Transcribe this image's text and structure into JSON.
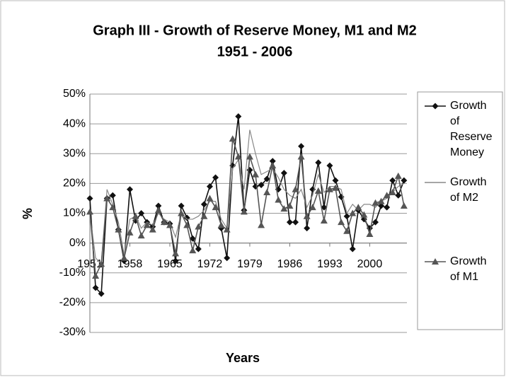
{
  "chart_data": {
    "type": "line",
    "title": "Graph III - Growth of Reserve Money, M1 and M2",
    "subtitle": "1951 - 2006",
    "y_label": "%",
    "x_label": "Years",
    "categories": [
      "1951",
      null,
      null,
      null,
      null,
      null,
      null,
      "1958",
      null,
      null,
      null,
      null,
      null,
      null,
      "1965",
      null,
      null,
      null,
      null,
      null,
      null,
      "1972",
      null,
      null,
      null,
      null,
      null,
      null,
      "1979",
      null,
      null,
      null,
      null,
      null,
      null,
      "1986",
      null,
      null,
      null,
      null,
      null,
      null,
      "1993",
      null,
      null,
      null,
      null,
      null,
      null,
      "2000",
      null,
      null,
      null,
      null,
      null,
      null
    ],
    "series": [
      {
        "name": "Growth of Reserve Money",
        "color": "#111111",
        "marker": "diamond",
        "values": [
          15,
          -15,
          -17,
          15,
          16,
          4.5,
          -6,
          18,
          7.5,
          10,
          7,
          5.5,
          12.5,
          7,
          6.5,
          -6,
          12.5,
          8.5,
          1.5,
          -2,
          13,
          19,
          22,
          5,
          -5,
          26,
          42.5,
          11,
          24.5,
          19,
          19.5,
          21.5,
          27.5,
          18,
          23.5,
          7,
          7,
          32.5,
          5,
          18,
          27,
          12,
          26,
          21,
          15.5,
          9,
          -2,
          11,
          8,
          5,
          7,
          12.5,
          12,
          21,
          16,
          21
        ]
      },
      {
        "name": "Growth of M2",
        "color": "#888888",
        "marker": "none",
        "values": [
          10,
          -5,
          -7,
          18,
          13,
          7,
          -4,
          8,
          9,
          5,
          7,
          6,
          10,
          8,
          7,
          2,
          10,
          8,
          8,
          9,
          11,
          14,
          14,
          8,
          5,
          25,
          28,
          18,
          38,
          30,
          23,
          24,
          25,
          22,
          18,
          16,
          15,
          18,
          12,
          16,
          23,
          17,
          19,
          19,
          18,
          10,
          13,
          11,
          13,
          13,
          12,
          14,
          15,
          17,
          19,
          20
        ]
      },
      {
        "name": "Growth of M1",
        "color": "#555555",
        "marker": "triangle",
        "values": [
          10.5,
          -11,
          -7,
          15,
          12,
          4.5,
          -5,
          3.5,
          9,
          2.5,
          6,
          4.5,
          11,
          7,
          6,
          -3.5,
          10,
          6,
          -2.5,
          5.5,
          9,
          15,
          12,
          6,
          4.5,
          35,
          29,
          10.5,
          29,
          23,
          6,
          17,
          26,
          14.5,
          11.5,
          12.5,
          18,
          29,
          9,
          12,
          17.5,
          7.5,
          18,
          18.5,
          7,
          4,
          10,
          12,
          9.5,
          3,
          13.5,
          14,
          16,
          17,
          22.5,
          12.5
        ]
      }
    ],
    "ylim": [
      -30,
      50
    ],
    "yticks": [
      {
        "value": -30,
        "label": "-30%"
      },
      {
        "value": -20,
        "label": "-20%"
      },
      {
        "value": -10,
        "label": "-10%"
      },
      {
        "value": 0,
        "label": "0%"
      },
      {
        "value": 10,
        "label": "10%"
      },
      {
        "value": 20,
        "label": "20%"
      },
      {
        "value": 30,
        "label": "30%"
      },
      {
        "value": 40,
        "label": "40%"
      },
      {
        "value": 50,
        "label": "50%"
      }
    ],
    "grid": true,
    "legend": "right"
  }
}
